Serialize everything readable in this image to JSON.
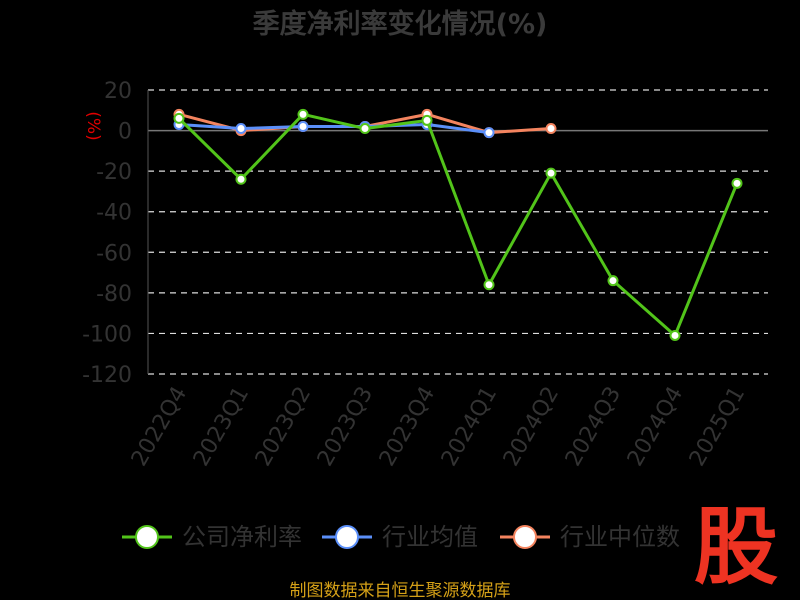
{
  "chart_data": {
    "type": "line",
    "title": "季度净利率变化情况(%)",
    "ylabel": "(%)",
    "xlabel": "",
    "ylim": [
      -120,
      20
    ],
    "yticks": [
      20,
      0,
      -20,
      -40,
      -60,
      -80,
      -100,
      -120
    ],
    "grid": true,
    "legend_position": "bottom",
    "categories": [
      "2022Q4",
      "2023Q1",
      "2023Q2",
      "2023Q3",
      "2023Q4",
      "2024Q1",
      "2024Q2",
      "2024Q3",
      "2024Q4",
      "2025Q1"
    ],
    "series": [
      {
        "name": "公司净利率",
        "color": "#52c41a",
        "values": [
          6,
          -24,
          8,
          1,
          5,
          -76,
          -21,
          -74,
          -101,
          -26
        ]
      },
      {
        "name": "行业均值",
        "color": "#5b8ff9",
        "values": [
          3,
          1,
          2,
          2,
          3,
          -1,
          null,
          null,
          null,
          null
        ]
      },
      {
        "name": "行业中位数",
        "color": "#f4845f",
        "values": [
          8,
          0,
          2,
          2,
          8,
          -1,
          1,
          null,
          null,
          null
        ]
      }
    ]
  },
  "footer": {
    "source": "制图数据来自恒生聚源数据库"
  },
  "logo": {
    "text": "股"
  }
}
